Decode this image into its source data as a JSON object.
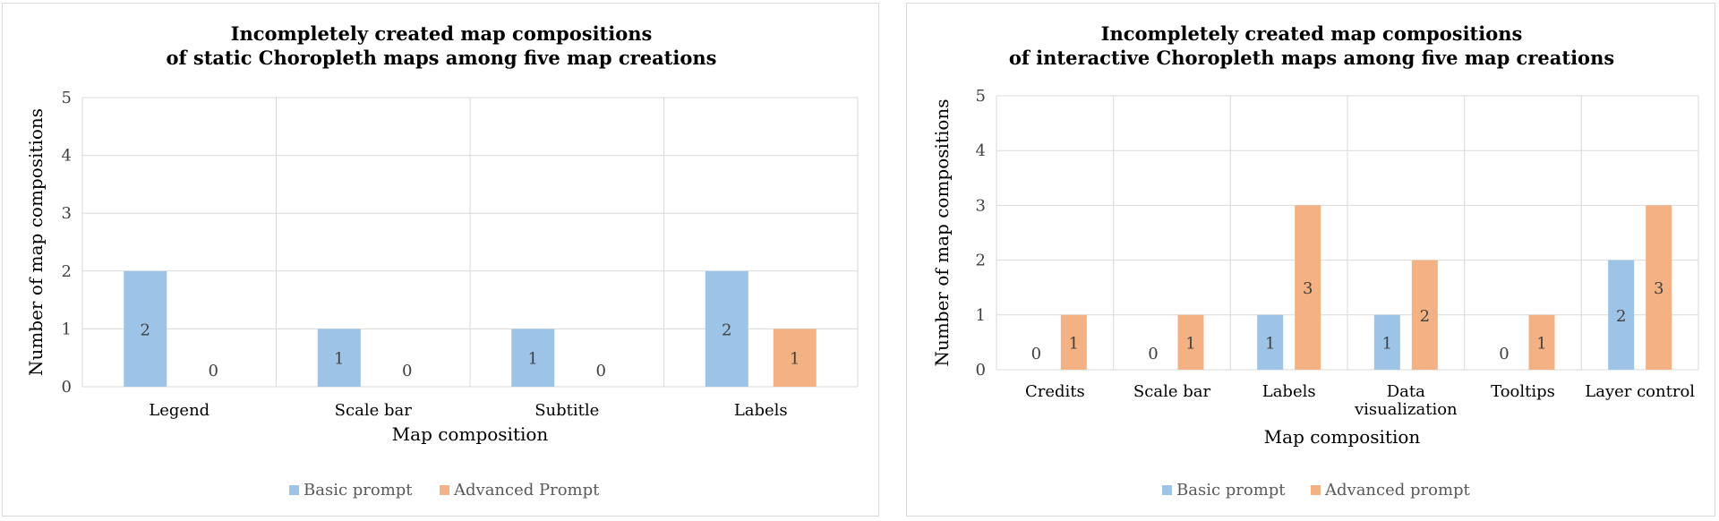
{
  "chart_data": [
    {
      "type": "bar",
      "title": "Incompletely created map compositions\nof static Choropleth maps among five map creations",
      "xlabel": "Map composition",
      "ylabel": "Number of map compositions",
      "ylim": [
        0,
        5
      ],
      "yticks": [
        "0",
        "1",
        "2",
        "3",
        "4",
        "5"
      ],
      "grid": true,
      "legend_position": "bottom",
      "categories": [
        "Legend",
        "Scale bar",
        "Subtitle",
        "Labels"
      ],
      "series": [
        {
          "name": "Basic prompt",
          "color": "#9DC3E6",
          "values": [
            2,
            1,
            1,
            2
          ]
        },
        {
          "name": "Advanced Prompt",
          "color": "#F4B183",
          "values": [
            0,
            0,
            0,
            1
          ]
        }
      ]
    },
    {
      "type": "bar",
      "title": "Incompletely created map compositions\nof interactive Choropleth maps among five map creations",
      "xlabel": "Map composition",
      "ylabel": "Number of map compositions",
      "ylim": [
        0,
        5
      ],
      "yticks": [
        "0",
        "1",
        "2",
        "3",
        "4",
        "5"
      ],
      "grid": true,
      "legend_position": "bottom",
      "categories": [
        "Credits",
        "Scale bar",
        "Labels",
        "Data\nvisualization",
        "Tooltips",
        "Layer control"
      ],
      "series": [
        {
          "name": "Basic prompt",
          "color": "#9DC3E6",
          "values": [
            0,
            0,
            1,
            1,
            0,
            2
          ]
        },
        {
          "name": "Advanced prompt",
          "color": "#F4B183",
          "values": [
            1,
            1,
            3,
            2,
            1,
            3
          ]
        }
      ]
    }
  ]
}
